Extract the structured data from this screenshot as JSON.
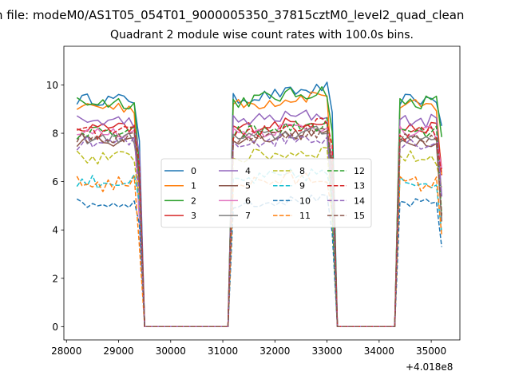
{
  "suptitle": "n file: modeM0/AS1T05_054T01_9000005350_37815cztM0_level2_quad_clean",
  "chart_data": {
    "type": "line",
    "title": "Quadrant 2 module wise count rates with 100.0s bins.",
    "xlabel": "",
    "ylabel": "",
    "x_offset_label": "+4.018e8",
    "xlim": [
      27950,
      35550
    ],
    "ylim": [
      -0.55,
      11.6
    ],
    "xticks": [
      28000,
      29000,
      30000,
      31000,
      32000,
      33000,
      34000,
      35000
    ],
    "yticks": [
      0,
      2,
      4,
      6,
      8,
      10
    ],
    "grid": false,
    "legend_position": "center",
    "legend_columns": 4,
    "segments": [
      {
        "start": 28200,
        "end": 29400
      },
      {
        "start": 31200,
        "end": 33100
      },
      {
        "start": 34400,
        "end": 35200
      }
    ],
    "series": [
      {
        "name": "0",
        "color": "#1f77b4",
        "dash": "solid",
        "level": 9.4,
        "jitter": 0.25,
        "rise": 0.5
      },
      {
        "name": "1",
        "color": "#ff7f0e",
        "dash": "solid",
        "level": 9.1,
        "jitter": 0.3,
        "rise": 0.6
      },
      {
        "name": "2",
        "color": "#2ca02c",
        "dash": "solid",
        "level": 9.3,
        "jitter": 0.3,
        "rise": 0.5
      },
      {
        "name": "3",
        "color": "#d62728",
        "dash": "solid",
        "level": 8.2,
        "jitter": 0.25,
        "rise": 0.4
      },
      {
        "name": "4",
        "color": "#9467bd",
        "dash": "solid",
        "level": 8.5,
        "jitter": 0.3,
        "rise": 0.3
      },
      {
        "name": "5",
        "color": "#8c564b",
        "dash": "solid",
        "level": 7.7,
        "jitter": 0.25,
        "rise": 0.4
      },
      {
        "name": "6",
        "color": "#e377c2",
        "dash": "solid",
        "level": 8.0,
        "jitter": 0.3,
        "rise": 0.4
      },
      {
        "name": "7",
        "color": "#7f7f7f",
        "dash": "solid",
        "level": 7.8,
        "jitter": 0.25,
        "rise": 0.3
      },
      {
        "name": "8",
        "color": "#bcbd22",
        "dash": "dashed",
        "level": 7.0,
        "jitter": 0.3,
        "rise": 0.3
      },
      {
        "name": "9",
        "color": "#17becf",
        "dash": "dashed",
        "level": 6.0,
        "jitter": 0.3,
        "rise": 0.4
      },
      {
        "name": "10",
        "color": "#1f77b4",
        "dash": "dashed",
        "level": 5.1,
        "jitter": 0.2,
        "rise": 0.2
      },
      {
        "name": "11",
        "color": "#ff7f0e",
        "dash": "dashed",
        "level": 5.9,
        "jitter": 0.35,
        "rise": 0.3
      },
      {
        "name": "12",
        "color": "#2ca02c",
        "dash": "dashed",
        "level": 8.0,
        "jitter": 0.3,
        "rise": 0.4
      },
      {
        "name": "13",
        "color": "#d62728",
        "dash": "dashed",
        "level": 8.0,
        "jitter": 0.3,
        "rise": 0.4
      },
      {
        "name": "14",
        "color": "#9467bd",
        "dash": "dashed",
        "level": 7.6,
        "jitter": 0.3,
        "rise": 0.3
      },
      {
        "name": "15",
        "color": "#8c564b",
        "dash": "dashed",
        "level": 7.8,
        "jitter": 0.25,
        "rise": 0.3
      }
    ]
  }
}
